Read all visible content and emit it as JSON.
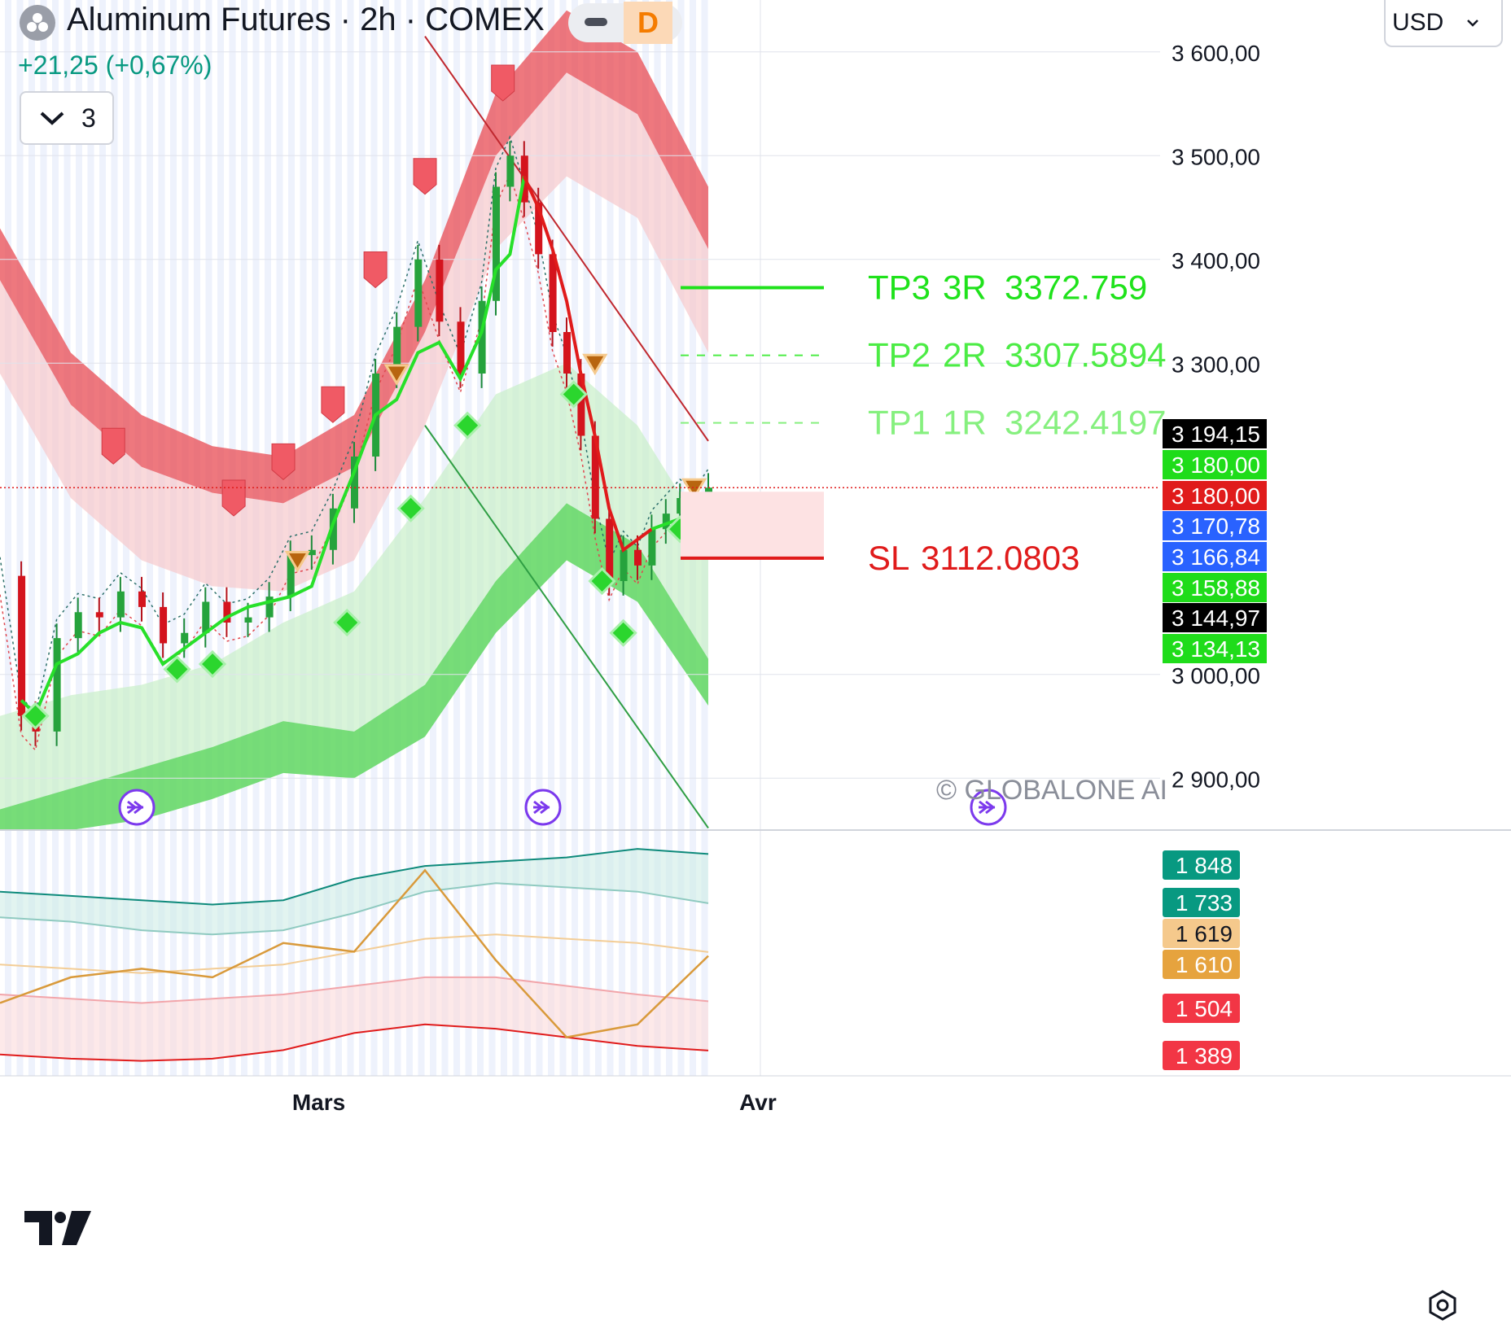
{
  "header": {
    "title": "Aluminum Futures · 2h · COMEX",
    "change": "+21,25 (+0,67%)",
    "badge": "D",
    "collapse_count": "3",
    "currency": "USD",
    "icons": {
      "symbol": "symbol-logo-icon",
      "minimize": "minimize-icon",
      "collapse": "chevron-down-icon",
      "currency": "chevron-down-icon",
      "settings": "settings-icon",
      "logo": "tradingview-logo-icon"
    }
  },
  "chart_data": {
    "type": "line",
    "price_axis": {
      "ylim": [
        2850,
        3650
      ],
      "ticks": [
        {
          "value": 3600,
          "label": "3 600,00"
        },
        {
          "value": 3500,
          "label": "3 500,00"
        },
        {
          "value": 3400,
          "label": "3 400,00"
        },
        {
          "value": 3300,
          "label": "3 300,00"
        },
        {
          "value": 3000,
          "label": "3 000,00"
        },
        {
          "value": 2900,
          "label": "2 900,00"
        }
      ]
    },
    "x_axis": {
      "ticks": [
        {
          "label": "Mars",
          "position": 0.45
        },
        {
          "label": "Avr",
          "position": 1.07
        }
      ]
    },
    "price_labels": [
      {
        "value": 3194.15,
        "label": "3 194,15",
        "color": "#000000"
      },
      {
        "value": 3180.0,
        "label": "3 180,00",
        "color": "#1fdc1a"
      },
      {
        "value": 3180.0,
        "label": "3 180,00",
        "color": "#e01b1b"
      },
      {
        "value": 3170.78,
        "label": "3 170,78",
        "color": "#2962ff"
      },
      {
        "value": 3166.84,
        "label": "3 166,84",
        "color": "#2962ff"
      },
      {
        "value": 3158.88,
        "label": "3 158,88",
        "color": "#1fdc1a"
      },
      {
        "value": 3144.97,
        "label": "3 144,97",
        "color": "#000000"
      },
      {
        "value": 3134.13,
        "label": "3 134,13",
        "color": "#1fdc1a"
      }
    ],
    "current_price": 3180.0,
    "trade_levels": [
      {
        "name": "TP3",
        "r": "3R",
        "value": 3372.759,
        "label": "3372.759",
        "color": "#1fe21b",
        "style": "solid"
      },
      {
        "name": "TP2",
        "r": "2R",
        "value": 3307.5894,
        "label": "3307.5894",
        "color": "#4cec45",
        "style": "dashed"
      },
      {
        "name": "TP1",
        "r": "1R",
        "value": 3242.4197,
        "label": "3242.4197",
        "color": "#86f07f",
        "style": "dashed"
      },
      {
        "name": "SL",
        "r": "",
        "value": 3112.0803,
        "label": "3112.0803",
        "color": "#e01b1b",
        "style": "solid"
      }
    ],
    "price_series": {
      "x": [
        0.0,
        0.03,
        0.05,
        0.08,
        0.11,
        0.14,
        0.17,
        0.2,
        0.23,
        0.26,
        0.29,
        0.32,
        0.35,
        0.38,
        0.41,
        0.44,
        0.47,
        0.5,
        0.53,
        0.56,
        0.59,
        0.62,
        0.65,
        0.68,
        0.7,
        0.72,
        0.74,
        0.76,
        0.78,
        0.8,
        0.82,
        0.84,
        0.86,
        0.88,
        0.9,
        0.92,
        0.94,
        0.96,
        0.98,
        1.0
      ],
      "close": [
        3095,
        2960,
        2945,
        3035,
        3060,
        3055,
        3080,
        3065,
        3030,
        3040,
        3070,
        3050,
        3055,
        3075,
        3115,
        3120,
        3160,
        3210,
        3290,
        3335,
        3400,
        3340,
        3290,
        3360,
        3470,
        3500,
        3455,
        3405,
        3330,
        3290,
        3230,
        3150,
        3090,
        3120,
        3105,
        3140,
        3155,
        3170,
        3160,
        3180
      ]
    },
    "trend_line": {
      "x": [
        0.03,
        0.05,
        0.08,
        0.11,
        0.14,
        0.17,
        0.2,
        0.23,
        0.26,
        0.29,
        0.32,
        0.35,
        0.38,
        0.41,
        0.44,
        0.47,
        0.5,
        0.53,
        0.56,
        0.59,
        0.62,
        0.65,
        0.68,
        0.7,
        0.72,
        0.74,
        0.76,
        0.78,
        0.8,
        0.82,
        0.84,
        0.86,
        0.88,
        0.9,
        0.92,
        0.94,
        0.96,
        0.98,
        1.0
      ],
      "value": [
        2975,
        2962,
        3010,
        3020,
        3040,
        3050,
        3045,
        3010,
        3025,
        3040,
        3055,
        3065,
        3070,
        3075,
        3085,
        3145,
        3195,
        3250,
        3265,
        3310,
        3320,
        3285,
        3330,
        3390,
        3405,
        3480,
        3450,
        3410,
        3360,
        3290,
        3230,
        3160,
        3120,
        3130,
        3140,
        3145,
        3150,
        3160,
        3170
      ]
    },
    "upper_band": {
      "x": [
        0.0,
        0.1,
        0.2,
        0.3,
        0.4,
        0.5,
        0.6,
        0.7,
        0.8,
        0.9,
        1.0
      ],
      "outer": [
        3430,
        3310,
        3250,
        3220,
        3210,
        3250,
        3380,
        3560,
        3640,
        3600,
        3470
      ],
      "inner": [
        3380,
        3260,
        3200,
        3175,
        3165,
        3200,
        3330,
        3500,
        3580,
        3540,
        3410
      ],
      "faint": [
        3290,
        3170,
        3110,
        3085,
        3080,
        3110,
        3240,
        3410,
        3480,
        3440,
        3310
      ]
    },
    "lower_band": {
      "x": [
        0.0,
        0.1,
        0.2,
        0.3,
        0.4,
        0.5,
        0.6,
        0.7,
        0.8,
        0.9,
        1.0
      ],
      "outer": [
        2850,
        2850,
        2860,
        2880,
        2905,
        2900,
        2940,
        3040,
        3110,
        3070,
        2970
      ],
      "inner": [
        2870,
        2890,
        2910,
        2930,
        2955,
        2945,
        2990,
        3090,
        3165,
        3125,
        3015
      ],
      "faint": [
        2960,
        2980,
        2990,
        3010,
        3050,
        3080,
        3170,
        3270,
        3300,
        3240,
        3130
      ]
    },
    "oscillator": {
      "ylim": [
        1330,
        1900
      ],
      "labels": [
        {
          "value": 1848,
          "label": "1 848",
          "color": "#089981"
        },
        {
          "value": 1733,
          "label": "1 733",
          "color": "#089981"
        },
        {
          "value": 1619,
          "label": "1 619",
          "color": "#f5c98c"
        },
        {
          "value": 1610,
          "label": "1 610",
          "color": "#e6a33e"
        },
        {
          "value": 1504,
          "label": "1 504",
          "color": "#f23645"
        },
        {
          "value": 1389,
          "label": "1 389",
          "color": "#f23645"
        }
      ],
      "x": [
        0.0,
        0.1,
        0.2,
        0.3,
        0.4,
        0.5,
        0.6,
        0.7,
        0.8,
        0.9,
        1.0
      ],
      "upper": [
        1760,
        1750,
        1740,
        1730,
        1740,
        1790,
        1820,
        1830,
        1840,
        1860,
        1848
      ],
      "mid_upper": [
        1700,
        1690,
        1670,
        1660,
        1670,
        1710,
        1760,
        1780,
        1770,
        1760,
        1733
      ],
      "mid": [
        1590,
        1580,
        1570,
        1580,
        1590,
        1620,
        1650,
        1660,
        1650,
        1640,
        1619
      ],
      "mid_lower": [
        1520,
        1510,
        1500,
        1510,
        1520,
        1540,
        1560,
        1560,
        1540,
        1520,
        1504
      ],
      "lower": [
        1380,
        1370,
        1365,
        1370,
        1390,
        1430,
        1450,
        1440,
        1420,
        1400,
        1389
      ],
      "signal": [
        1500,
        1560,
        1580,
        1560,
        1640,
        1620,
        1810,
        1600,
        1420,
        1450,
        1610
      ]
    },
    "watermark": "© GLOBALONE AI"
  }
}
